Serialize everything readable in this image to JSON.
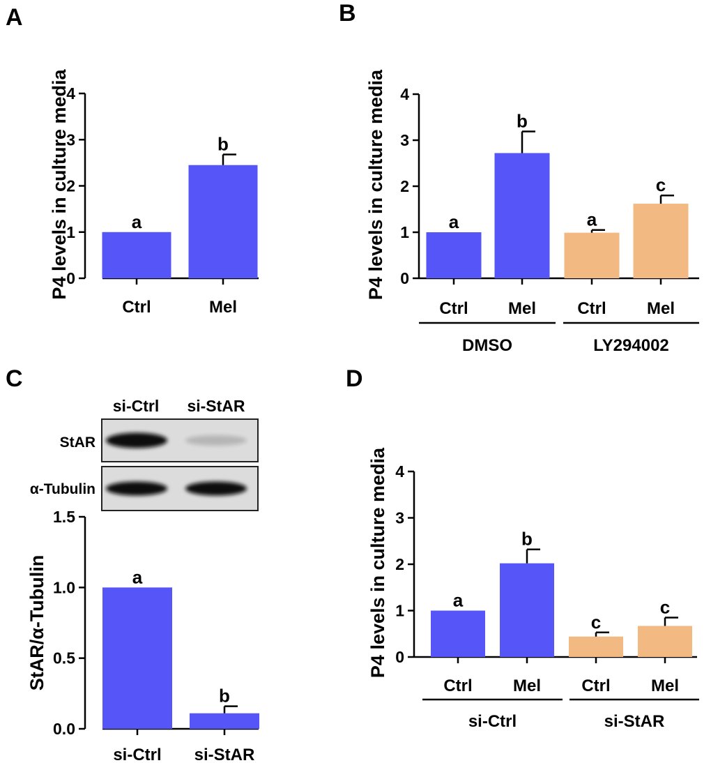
{
  "colors": {
    "primary": "#5555F8",
    "secondary": "#F2B983",
    "axis": "#000000",
    "blot_band": "#111111",
    "blot_background": "#DCDCDC"
  },
  "panels": {
    "A": {
      "label": "A"
    },
    "B": {
      "label": "B"
    },
    "C": {
      "label": "C"
    },
    "D": {
      "label": "D"
    }
  },
  "blot": {
    "lane_labels": [
      "si-Ctrl",
      "si-StAR"
    ],
    "rows": [
      {
        "name": "StAR",
        "intensities": [
          1.0,
          0.18
        ]
      },
      {
        "name": "α-Tubulin",
        "intensities": [
          1.0,
          1.0
        ]
      }
    ]
  },
  "chart_data": [
    {
      "panel": "A",
      "type": "bar",
      "ylabel": "P4 levels in culture media",
      "ylim": [
        0,
        4
      ],
      "yticks": [
        "0",
        "1",
        "2",
        "3",
        "4"
      ],
      "categories": [
        "Ctrl",
        "Mel"
      ],
      "values": [
        1.0,
        2.45
      ],
      "errors": [
        0,
        0.23
      ],
      "letters": [
        "a",
        "b"
      ],
      "colors": [
        "primary",
        "primary"
      ],
      "groups": []
    },
    {
      "panel": "B",
      "type": "bar",
      "ylabel": "P4 levels in culture media",
      "ylim": [
        0,
        4
      ],
      "yticks": [
        "0",
        "1",
        "2",
        "3",
        "4"
      ],
      "categories": [
        "Ctrl",
        "Mel",
        "Ctrl",
        "Mel"
      ],
      "values": [
        1.0,
        2.72,
        0.99,
        1.62
      ],
      "errors": [
        0,
        0.47,
        0.06,
        0.18
      ],
      "letters": [
        "a",
        "b",
        "a",
        "c"
      ],
      "colors": [
        "primary",
        "primary",
        "secondary",
        "secondary"
      ],
      "groups": [
        {
          "label": "DMSO",
          "range": [
            0,
            1
          ]
        },
        {
          "label": "LY294002",
          "range": [
            2,
            3
          ]
        }
      ]
    },
    {
      "panel": "C",
      "type": "bar",
      "ylabel": "StAR/α-Tubulin",
      "ylim": [
        0,
        1.5
      ],
      "yticks": [
        "0.0",
        "0.5",
        "1.0",
        "1.5"
      ],
      "categories": [
        "si-Ctrl",
        "si-StAR"
      ],
      "values": [
        1.0,
        0.11
      ],
      "errors": [
        0,
        0.05
      ],
      "letters": [
        "a",
        "b"
      ],
      "colors": [
        "primary",
        "primary"
      ],
      "groups": []
    },
    {
      "panel": "D",
      "type": "bar",
      "ylabel": "P4 levels in culture media",
      "ylim": [
        0,
        4
      ],
      "yticks": [
        "0",
        "1",
        "2",
        "3",
        "4"
      ],
      "categories": [
        "Ctrl",
        "Mel",
        "Ctrl",
        "Mel"
      ],
      "values": [
        1.0,
        2.02,
        0.44,
        0.67
      ],
      "errors": [
        0,
        0.3,
        0.09,
        0.18
      ],
      "letters": [
        "a",
        "b",
        "c",
        "c"
      ],
      "colors": [
        "primary",
        "primary",
        "secondary",
        "secondary"
      ],
      "groups": [
        {
          "label": "si-Ctrl",
          "range": [
            0,
            1
          ]
        },
        {
          "label": "si-StAR",
          "range": [
            2,
            3
          ]
        }
      ]
    }
  ]
}
